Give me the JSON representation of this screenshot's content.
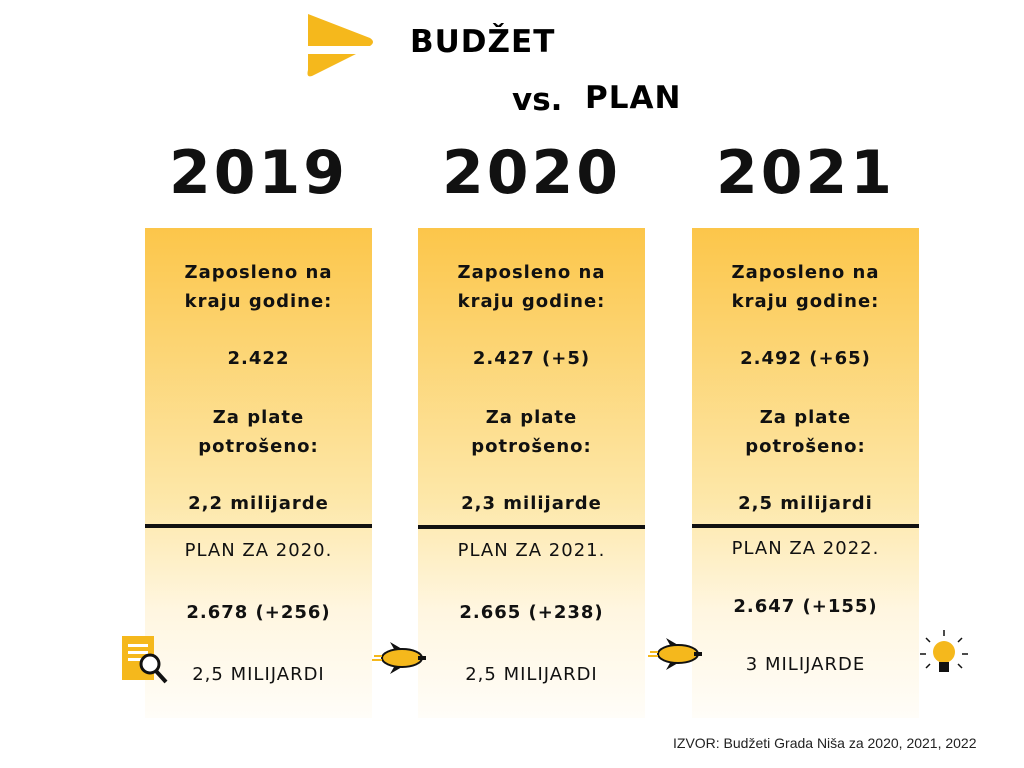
{
  "header": {
    "title": "BUDŽET",
    "vs": "vs.",
    "plan": "PLAN"
  },
  "columns": [
    {
      "year": "2019",
      "employed_label": "Zaposleno na kraju godine:",
      "employed": "2.422",
      "salary_label": "Za plate potrošeno:",
      "salary": "2,2 milijarde",
      "plan_title": "PLAN ZA 2020.",
      "plan_employed": "2.678 (+256)",
      "plan_salary": "2,5 MILIJARDI"
    },
    {
      "year": "2020",
      "employed_label": "Zaposleno na kraju godine:",
      "employed": "2.427 (+5)",
      "salary_label": "Za plate potrošeno:",
      "salary": "2,3 milijarde",
      "plan_title": "PLAN ZA 2021.",
      "plan_employed": "2.665 (+238)",
      "plan_salary": "2,5 MILIJARDI"
    },
    {
      "year": "2021",
      "employed_label": "Zaposleno na kraju godine:",
      "employed": "2.492 (+65)",
      "salary_label": "Za plate potrošeno:",
      "salary": "2,5 milijardi",
      "plan_title": "PLAN ZA 2022.",
      "plan_employed": "2.647 (+155)",
      "plan_salary": "3 MILIJARDE"
    }
  ],
  "source": "IZVOR: Budžeti Grada Niša za 2020, 2021, 2022"
}
